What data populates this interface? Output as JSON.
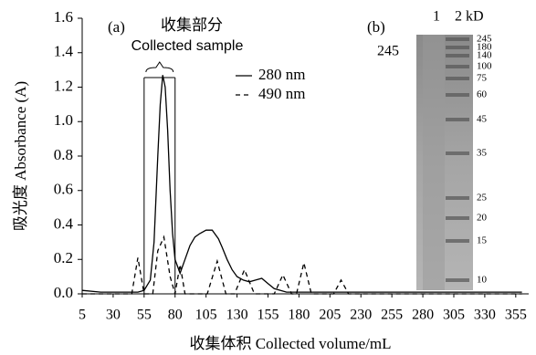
{
  "chart_data": {
    "type": "line",
    "ylabel": "吸光度 Absorbance (A)",
    "xlabel": "收集体积 Collected volume/mL",
    "panel_a": "(a)",
    "annotation_cn": "收集部分",
    "annotation_en": "Collected sample",
    "collected_range": [
      55,
      80
    ],
    "xlim": [
      5,
      360
    ],
    "xticks": [
      5,
      30,
      55,
      80,
      105,
      130,
      155,
      180,
      205,
      230,
      255,
      280,
      305,
      330,
      355
    ],
    "ylim": [
      0,
      1.6
    ],
    "yticks": [
      {
        "value": 0,
        "label": "0.0"
      },
      {
        "value": 0.2,
        "label": "0.2"
      },
      {
        "value": 0.4,
        "label": "0.4"
      },
      {
        "value": 0.6,
        "label": "0.6"
      },
      {
        "value": 0.8,
        "label": "0.8"
      },
      {
        "value": 1,
        "label": "1.0"
      },
      {
        "value": 1.2,
        "label": "1.2"
      },
      {
        "value": 1.4,
        "label": "1.4"
      },
      {
        "value": 1.6,
        "label": "1.6"
      }
    ],
    "series": [
      {
        "name": "280 nm",
        "color": "#000000",
        "dash": false,
        "x": [
          5,
          20,
          40,
          50,
          55,
          60,
          63,
          66,
          68,
          70,
          72,
          74,
          76,
          78,
          80,
          84,
          88,
          92,
          96,
          100,
          105,
          110,
          115,
          118,
          122,
          126,
          130,
          135,
          140,
          145,
          150,
          155,
          160,
          170,
          200,
          250,
          300,
          360
        ],
        "values": [
          0.02,
          0.01,
          0.01,
          0.01,
          0.02,
          0.08,
          0.3,
          0.8,
          1.1,
          1.27,
          1.2,
          0.95,
          0.6,
          0.35,
          0.2,
          0.12,
          0.2,
          0.28,
          0.33,
          0.35,
          0.37,
          0.37,
          0.32,
          0.27,
          0.2,
          0.14,
          0.1,
          0.08,
          0.07,
          0.08,
          0.09,
          0.06,
          0.03,
          0.01,
          0.01,
          0.01,
          0.01,
          0.01
        ]
      },
      {
        "name": "490 nm",
        "color": "#000000",
        "dash": true,
        "x": [
          5,
          45,
          50,
          55,
          62,
          66,
          71,
          76,
          80,
          84,
          88,
          106,
          114,
          121,
          128,
          136,
          144,
          160,
          167,
          174,
          178,
          184,
          190,
          208,
          214,
          220,
          360
        ],
        "values": [
          0,
          0,
          0.21,
          0,
          0,
          0.25,
          0.33,
          0.1,
          0,
          0.17,
          0,
          0,
          0.19,
          0,
          0,
          0.14,
          0,
          0,
          0.11,
          0,
          0,
          0.18,
          0,
          0,
          0.08,
          0,
          0
        ]
      }
    ],
    "gel": {
      "panel": "(b)",
      "left_label": "245",
      "lane1": "1",
      "lane2": "2 kD",
      "markers": [
        "245",
        "180",
        "140",
        "100",
        "75",
        "60",
        "45",
        "35",
        "25",
        "20",
        "15",
        "10"
      ]
    }
  }
}
